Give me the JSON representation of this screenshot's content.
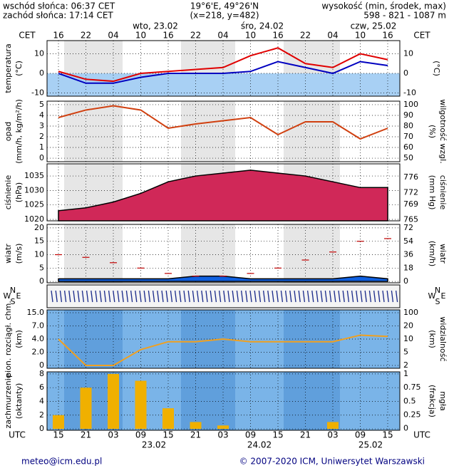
{
  "header": {
    "sunrise": "wschód słońca: 06:37 CET",
    "sunset": "zachód słońca: 17:14 CET",
    "coords": "19°6'E, 49°26'N",
    "gridpos": "(x=218,  y=482)",
    "elev_title": "wysokość (min, środek, max)",
    "elev": "598 - 821 - 1087 m"
  },
  "time_axis": {
    "top_title": "CET",
    "cet": [
      "16",
      "22",
      "04",
      "10",
      "16",
      "22",
      "04",
      "10",
      "16",
      "22",
      "04",
      "10",
      "16"
    ],
    "utc_title": "UTC",
    "utc": [
      "15",
      "21",
      "03",
      "09",
      "15",
      "21",
      "03",
      "09",
      "15",
      "21",
      "03",
      "09",
      "15"
    ],
    "days_top": [
      "wto, 23.02",
      "śro, 24.02",
      "czw, 25.02"
    ],
    "days_bottom": [
      "23.02",
      "24.02",
      "25.02"
    ]
  },
  "chart_data": [
    {
      "type": "line",
      "ylabel": [
        "temperatura",
        "(°C)"
      ],
      "y2label": [
        "(°C)"
      ],
      "ylim": [
        -11.6,
        16.7
      ],
      "yticks": [
        -10,
        0,
        10
      ],
      "y2lim": [
        -11.6,
        16.7
      ],
      "y2ticks": [
        -10,
        0,
        10
      ],
      "series": [
        {
          "color": "#e00000",
          "style": "line",
          "values": [
            1,
            -3,
            -4,
            0,
            1,
            2,
            3,
            9,
            13,
            5,
            3,
            10,
            7
          ]
        },
        {
          "color": "#0000c0",
          "style": "line",
          "values": [
            0,
            -5,
            -5,
            -2,
            0,
            0,
            0,
            1,
            6,
            3,
            0,
            6,
            4
          ]
        }
      ]
    },
    {
      "type": "line",
      "ylabel": [
        "opad",
        "(mm/h, kg/m²/h)"
      ],
      "y2label": [
        "(%)",
        "wilgotność wzgl."
      ],
      "ylim": [
        -0.33,
        5.33
      ],
      "yticks": [
        0,
        1,
        2,
        3,
        4,
        5
      ],
      "y2lim": [
        46.7,
        103.3
      ],
      "y2ticks": [
        50,
        60,
        70,
        80,
        90,
        100
      ],
      "series": [
        {
          "color": "#d04010",
          "style": "line",
          "axis": "y2",
          "values": [
            88,
            95,
            99,
            95,
            78,
            82,
            85,
            88,
            72,
            84,
            84,
            68,
            78
          ]
        }
      ]
    },
    {
      "type": "line",
      "ylabel": [
        "ciśnienie",
        "(hPa)"
      ],
      "y2label": [
        "(mm Hg)",
        "ciśnienie"
      ],
      "ylim": [
        1019.5,
        1039.2
      ],
      "yticks": [
        1020,
        1025,
        1030,
        1035
      ],
      "y2lim": [
        764.7,
        779.5
      ],
      "y2ticks": [
        765,
        769,
        772,
        776
      ],
      "series": [
        {
          "color": "#d02858",
          "style": "area",
          "values": [
            1023,
            1024,
            1026,
            1029,
            1033,
            1035,
            1036,
            1037,
            1036,
            1035,
            1033,
            1031,
            1031
          ]
        }
      ]
    },
    {
      "type": "line",
      "ylabel": [
        "wiatr",
        "(m/s)"
      ],
      "y2label": [
        "(km/h)",
        "wiatr"
      ],
      "ylim": [
        -0.5,
        21.3
      ],
      "yticks": [
        0,
        5,
        10,
        15,
        20
      ],
      "y2lim": [
        -1.9,
        76.8
      ],
      "y2ticks": [
        0,
        18,
        36,
        54,
        72
      ],
      "series": [
        {
          "color": "#1060e0",
          "style": "area",
          "values": [
            1,
            1,
            1,
            1,
            1,
            2,
            2,
            1,
            1,
            1,
            1,
            2,
            1
          ]
        },
        {
          "color": "#c00000",
          "style": "dash",
          "values": [
            10,
            9,
            7,
            5,
            3,
            2,
            2,
            3,
            5,
            8,
            11,
            15,
            16
          ]
        }
      ]
    },
    {
      "type": "line",
      "ylabel": [
        "pion. rozciągł. chm.",
        "(km)"
      ],
      "y2label": [
        "(km)",
        "widzialność"
      ],
      "yticks": [
        0,
        {
          "value": 2,
          "label": "2.0"
        },
        {
          "value": 4,
          "label": "4.0"
        },
        {
          "value": 7,
          "label": "7.0"
        },
        {
          "value": 15,
          "label": "15.0"
        }
      ],
      "y2ticks": [
        2,
        5,
        10,
        20,
        100
      ],
      "series": [
        {
          "color": "#f0a020",
          "style": "line",
          "axis": "y2",
          "values": [
            10,
            2,
            2,
            6,
            9,
            9,
            10,
            9,
            9,
            9,
            9,
            13,
            12
          ]
        }
      ]
    },
    {
      "type": "bar",
      "ylabel": [
        "zachmurzenie",
        "(oktanty)"
      ],
      "y2label": [
        "(frakcja)",
        "mgła"
      ],
      "ylim": [
        -0.2,
        8.3
      ],
      "yticks": [
        0,
        2,
        4,
        6,
        8
      ],
      "y2lim": [
        -0.03,
        1.04
      ],
      "y2ticks": [
        0,
        0.25,
        0.5,
        0.75,
        1
      ],
      "series": [
        {
          "color": "#f0b000",
          "style": "bar",
          "values": [
            2,
            6,
            8,
            7,
            3,
            1,
            0.5,
            0,
            0,
            0,
            1,
            0,
            0
          ]
        }
      ]
    }
  ],
  "wind_dir": {
    "left": [
      "W",
      "N",
      "S",
      "E"
    ],
    "right": [
      "W",
      "N",
      "S",
      "E"
    ]
  },
  "footer": {
    "email": "meteo@icm.edu.pl",
    "copyright": "© 2007-2020 ICM, Uniwersytet Warszawski"
  }
}
